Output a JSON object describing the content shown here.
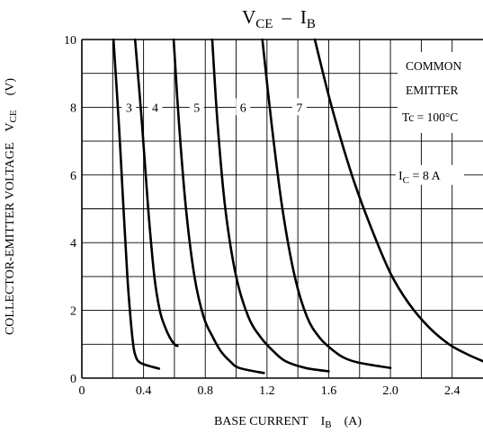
{
  "chart_data": {
    "type": "line",
    "title": {
      "main": "V",
      "main_sub": "CE",
      "sep": "–",
      "main2": "I",
      "main2_sub": "B"
    },
    "xlabel": {
      "text": "BASE CURRENT",
      "symbol": "I",
      "symbol_sub": "B",
      "unit": "(A)"
    },
    "ylabel": {
      "text": "COLLECTOR-EMITTER VOLTAGE",
      "symbol": "V",
      "symbol_sub": "CE",
      "unit": "(V)"
    },
    "xlim": [
      0,
      2.6
    ],
    "ylim": [
      0,
      10
    ],
    "x_ticks": [
      {
        "value": 0,
        "label": "0"
      },
      {
        "value": 0.4,
        "label": "0.4"
      },
      {
        "value": 0.8,
        "label": "0.8"
      },
      {
        "value": 1.2,
        "label": "1.2"
      },
      {
        "value": 1.6,
        "label": "1.6"
      },
      {
        "value": 2.0,
        "label": "2.0"
      },
      {
        "value": 2.4,
        "label": "2.4"
      }
    ],
    "y_ticks": [
      {
        "value": 0,
        "label": "0"
      },
      {
        "value": 2,
        "label": "2"
      },
      {
        "value": 4,
        "label": "4"
      },
      {
        "value": 6,
        "label": "6"
      },
      {
        "value": 8,
        "label": "8"
      },
      {
        "value": 10,
        "label": "10"
      }
    ],
    "grid_x": [
      0.2,
      0.4,
      0.6,
      0.8,
      1.0,
      1.2,
      1.4,
      1.6,
      1.8,
      2.0,
      2.2,
      2.4
    ],
    "grid_y": [
      1,
      2,
      3,
      4,
      5,
      6,
      7,
      8,
      9
    ],
    "grid": true,
    "annotations": {
      "lines": [
        "COMMON",
        "EMITTER",
        "Tc = 100°C"
      ],
      "ic_label": {
        "prefix": "I",
        "sub": "C",
        "text": " = 8 A"
      }
    },
    "series": [
      {
        "name": "3",
        "points": [
          [
            0.205,
            10
          ],
          [
            0.24,
            7.5
          ],
          [
            0.27,
            5.0
          ],
          [
            0.295,
            3.0
          ],
          [
            0.315,
            1.8
          ],
          [
            0.33,
            1.1
          ],
          [
            0.345,
            0.7
          ],
          [
            0.38,
            0.45
          ],
          [
            0.5,
            0.28
          ]
        ]
      },
      {
        "name": "4",
        "points": [
          [
            0.345,
            10
          ],
          [
            0.39,
            7.5
          ],
          [
            0.43,
            5.0
          ],
          [
            0.47,
            3.0
          ],
          [
            0.505,
            2.0
          ],
          [
            0.54,
            1.5
          ],
          [
            0.57,
            1.2
          ],
          [
            0.6,
            1.0
          ],
          [
            0.62,
            0.95
          ]
        ]
      },
      {
        "name": "5",
        "points": [
          [
            0.595,
            10
          ],
          [
            0.63,
            7.5
          ],
          [
            0.675,
            5.0
          ],
          [
            0.73,
            3.0
          ],
          [
            0.79,
            1.8
          ],
          [
            0.85,
            1.2
          ],
          [
            0.9,
            0.8
          ],
          [
            0.96,
            0.5
          ],
          [
            1.02,
            0.3
          ],
          [
            1.18,
            0.15
          ]
        ]
      },
      {
        "name": "6",
        "points": [
          [
            0.845,
            10
          ],
          [
            0.88,
            7.5
          ],
          [
            0.93,
            5.0
          ],
          [
            1.0,
            3.0
          ],
          [
            1.08,
            1.8
          ],
          [
            1.16,
            1.2
          ],
          [
            1.24,
            0.8
          ],
          [
            1.32,
            0.5
          ],
          [
            1.45,
            0.3
          ],
          [
            1.6,
            0.2
          ]
        ]
      },
      {
        "name": "7",
        "points": [
          [
            1.17,
            10
          ],
          [
            1.23,
            7.5
          ],
          [
            1.3,
            5.0
          ],
          [
            1.38,
            3.0
          ],
          [
            1.46,
            1.8
          ],
          [
            1.54,
            1.2
          ],
          [
            1.62,
            0.85
          ],
          [
            1.7,
            0.6
          ],
          [
            1.8,
            0.45
          ],
          [
            2.0,
            0.3
          ]
        ]
      },
      {
        "name": "8",
        "points": [
          [
            1.51,
            10
          ],
          [
            1.62,
            8.0
          ],
          [
            1.75,
            6.0
          ],
          [
            1.87,
            4.5
          ],
          [
            2.0,
            3.1
          ],
          [
            2.12,
            2.2
          ],
          [
            2.25,
            1.5
          ],
          [
            2.38,
            1.0
          ],
          [
            2.5,
            0.7
          ],
          [
            2.6,
            0.5
          ]
        ]
      }
    ],
    "curve_label_row_y": 8,
    "curve_labels": [
      {
        "name": "3",
        "x": 0.305
      },
      {
        "name": "4",
        "x": 0.475
      },
      {
        "name": "5",
        "x": 0.745
      },
      {
        "name": "6",
        "x": 1.045
      },
      {
        "name": "7",
        "x": 1.41
      }
    ]
  }
}
